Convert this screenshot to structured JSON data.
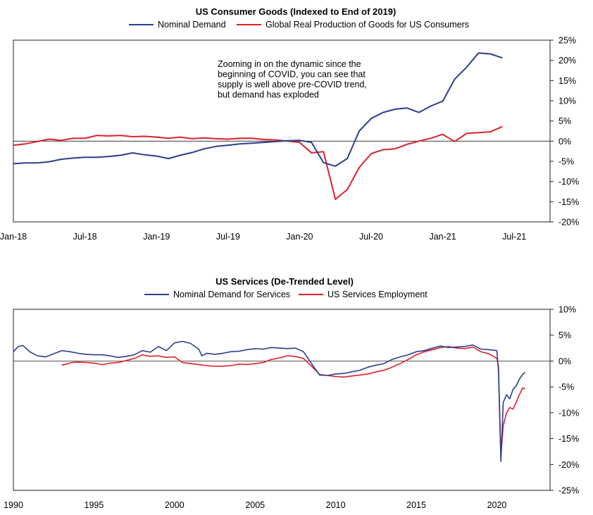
{
  "chart_data": [
    {
      "type": "line",
      "title": "US Consumer Goods (Indexed to End of 2019)",
      "x_tick_labels": [
        "Jan-18",
        "Jul-18",
        "Jan-19",
        "Jul-19",
        "Jan-20",
        "Jul-20",
        "Jan-21",
        "Jul-21"
      ],
      "x_range": [
        0,
        45
      ],
      "ylim": [
        -20,
        25
      ],
      "y_ticks": [
        25,
        20,
        15,
        10,
        5,
        0,
        -5,
        -10,
        -15,
        -20
      ],
      "y_tick_labels": [
        "25%",
        "20%",
        "15%",
        "10%",
        "5%",
        "0%",
        "-5%",
        "-10%",
        "-15%",
        "-20%"
      ],
      "y_axis_side": "right",
      "legend_position": "top-center",
      "annotation": [
        "Zooming in on the dynamic since the",
        "beginning of COVID, you can see that",
        "supply is well above pre-COVID trend,",
        "but demand has exploded"
      ],
      "series": [
        {
          "name": "Nominal Demand",
          "color": "#2b3f8f",
          "x": [
            0,
            1,
            2,
            3,
            4,
            5,
            6,
            7,
            8,
            9,
            10,
            11,
            12,
            13,
            14,
            15,
            16,
            17,
            18,
            19,
            20,
            21,
            22,
            23,
            24,
            25,
            26,
            27,
            28,
            29,
            30,
            31,
            32,
            33,
            34,
            35,
            36,
            37,
            38,
            39,
            40,
            41
          ],
          "y": [
            -5.6,
            -5.4,
            -5.4,
            -5.1,
            -4.5,
            -4.2,
            -4.0,
            -4.0,
            -3.8,
            -3.5,
            -2.9,
            -3.4,
            -3.7,
            -4.3,
            -3.5,
            -2.8,
            -1.9,
            -1.3,
            -1.0,
            -0.7,
            -0.5,
            -0.3,
            -0.1,
            0.1,
            0.2,
            -0.3,
            -5.3,
            -6.2,
            -4.3,
            2.5,
            5.6,
            7.1,
            7.9,
            8.2,
            7.1,
            8.7,
            9.9,
            15.3,
            18.3,
            21.8,
            21.6,
            20.6
          ]
        },
        {
          "name": "Global Real Production of Goods for US Consumers",
          "color": "#e0202a",
          "x": [
            0,
            1,
            2,
            3,
            4,
            5,
            6,
            7,
            8,
            9,
            10,
            11,
            12,
            13,
            14,
            15,
            16,
            17,
            18,
            19,
            20,
            21,
            22,
            23,
            24,
            25,
            26,
            27,
            28,
            29,
            30,
            31,
            32,
            33,
            34,
            35,
            36,
            37,
            38,
            39,
            40,
            41
          ],
          "y": [
            -1.0,
            -0.7,
            -0.1,
            0.5,
            0.2,
            0.7,
            0.7,
            1.4,
            1.3,
            1.4,
            1.1,
            1.2,
            1.0,
            0.7,
            1.0,
            0.6,
            0.8,
            0.6,
            0.5,
            0.7,
            0.7,
            0.4,
            0.3,
            0.0,
            -0.3,
            -2.9,
            -2.6,
            -14.4,
            -12.0,
            -6.5,
            -3.1,
            -2.1,
            -1.9,
            -0.8,
            0.0,
            0.7,
            1.7,
            -0.1,
            1.9,
            2.1,
            2.3,
            3.6
          ]
        }
      ]
    },
    {
      "type": "line",
      "title": "US Services (De-Trended Level)",
      "x_tick_labels": [
        "1990",
        "1995",
        "2000",
        "2005",
        "2010",
        "2015",
        "2020"
      ],
      "x_ticks": [
        1990,
        1995,
        2000,
        2005,
        2010,
        2015,
        2020
      ],
      "x_range": [
        1990,
        2023.3
      ],
      "ylim": [
        -25,
        10
      ],
      "y_ticks": [
        10,
        5,
        0,
        -5,
        -10,
        -15,
        -20,
        -25
      ],
      "y_tick_labels": [
        "10%",
        "5%",
        "0%",
        "-5%",
        "-10%",
        "-15%",
        "-20%",
        "-25%"
      ],
      "y_axis_side": "right",
      "legend_position": "top-center",
      "series": [
        {
          "name": "Nominal Demand for Services",
          "color": "#2b3f8f",
          "x": [
            1990.0,
            1990.3,
            1990.6,
            1991.0,
            1991.5,
            1992.0,
            1992.5,
            1993.0,
            1993.5,
            1994.0,
            1994.5,
            1995.0,
            1995.5,
            1996.0,
            1996.5,
            1997.0,
            1997.5,
            1998.0,
            1998.5,
            1999.0,
            1999.5,
            2000.0,
            2000.5,
            2001.0,
            2001.5,
            2001.7,
            2002.0,
            2002.5,
            2003.0,
            2003.5,
            2004.0,
            2004.5,
            2005.0,
            2005.5,
            2006.0,
            2006.5,
            2007.0,
            2007.5,
            2008.0,
            2008.5,
            2009.0,
            2009.5,
            2010.0,
            2010.5,
            2011.0,
            2011.5,
            2012.0,
            2012.5,
            2013.0,
            2013.5,
            2014.0,
            2014.5,
            2015.0,
            2015.5,
            2016.0,
            2016.5,
            2017.0,
            2017.5,
            2018.0,
            2018.5,
            2019.0,
            2019.5,
            2020.0,
            2020.1,
            2020.25,
            2020.4,
            2020.6,
            2020.8,
            2021.0,
            2021.2,
            2021.4,
            2021.6,
            2021.75
          ],
          "y": [
            1.8,
            2.8,
            3.0,
            1.8,
            1.0,
            0.8,
            1.4,
            2.0,
            1.8,
            1.5,
            1.3,
            1.2,
            1.2,
            1.0,
            0.7,
            0.9,
            1.2,
            2.0,
            1.7,
            2.8,
            2.0,
            3.5,
            3.8,
            3.4,
            2.3,
            1.0,
            1.5,
            1.3,
            1.5,
            1.8,
            1.9,
            2.2,
            2.4,
            2.3,
            2.6,
            2.5,
            2.4,
            2.5,
            1.8,
            -0.5,
            -2.7,
            -2.8,
            -2.5,
            -2.4,
            -2.1,
            -1.8,
            -1.2,
            -0.8,
            -0.5,
            0.3,
            0.8,
            1.2,
            1.8,
            2.0,
            2.5,
            2.9,
            2.6,
            2.7,
            2.8,
            3.1,
            2.3,
            2.2,
            2.0,
            -2.0,
            -19.4,
            -8.0,
            -6.5,
            -7.3,
            -5.5,
            -4.8,
            -3.5,
            -2.6,
            -2.2
          ]
        },
        {
          "name": "US Services Employment",
          "color": "#e0202a",
          "x": [
            1993.0,
            1993.3,
            1993.6,
            1994.0,
            1994.5,
            1995.0,
            1995.5,
            1996.0,
            1996.5,
            1997.0,
            1997.5,
            1998.0,
            1998.5,
            1999.0,
            1999.5,
            2000.0,
            2000.5,
            2001.0,
            2001.5,
            2002.0,
            2002.5,
            2003.0,
            2003.5,
            2004.0,
            2004.5,
            2005.0,
            2005.5,
            2006.0,
            2006.5,
            2007.0,
            2007.5,
            2008.0,
            2008.5,
            2009.0,
            2009.5,
            2010.0,
            2010.5,
            2011.0,
            2011.5,
            2012.0,
            2012.5,
            2013.0,
            2013.5,
            2014.0,
            2014.5,
            2015.0,
            2015.5,
            2016.0,
            2016.5,
            2017.0,
            2017.5,
            2018.0,
            2018.5,
            2019.0,
            2019.5,
            2020.0,
            2020.1,
            2020.25,
            2020.4,
            2020.6,
            2020.8,
            2021.0,
            2021.2,
            2021.4,
            2021.6,
            2021.75
          ],
          "y": [
            -0.8,
            -0.6,
            -0.3,
            -0.2,
            -0.3,
            -0.4,
            -0.7,
            -0.4,
            -0.3,
            0.1,
            0.5,
            1.2,
            0.9,
            1.0,
            0.7,
            0.8,
            -0.3,
            -0.5,
            -0.7,
            -0.9,
            -1.0,
            -1.0,
            -0.9,
            -0.6,
            -0.7,
            -0.5,
            -0.3,
            0.3,
            0.6,
            1.0,
            0.9,
            0.5,
            -1.0,
            -2.6,
            -2.8,
            -3.0,
            -3.1,
            -2.9,
            -2.7,
            -2.5,
            -2.1,
            -1.8,
            -1.2,
            -0.5,
            0.3,
            1.2,
            1.8,
            2.2,
            2.6,
            2.8,
            2.5,
            2.4,
            2.7,
            1.8,
            1.4,
            0.5,
            -1.0,
            -18.3,
            -12.5,
            -10.0,
            -9.0,
            -9.3,
            -8.0,
            -6.5,
            -5.2,
            -5.4
          ]
        }
      ]
    }
  ]
}
